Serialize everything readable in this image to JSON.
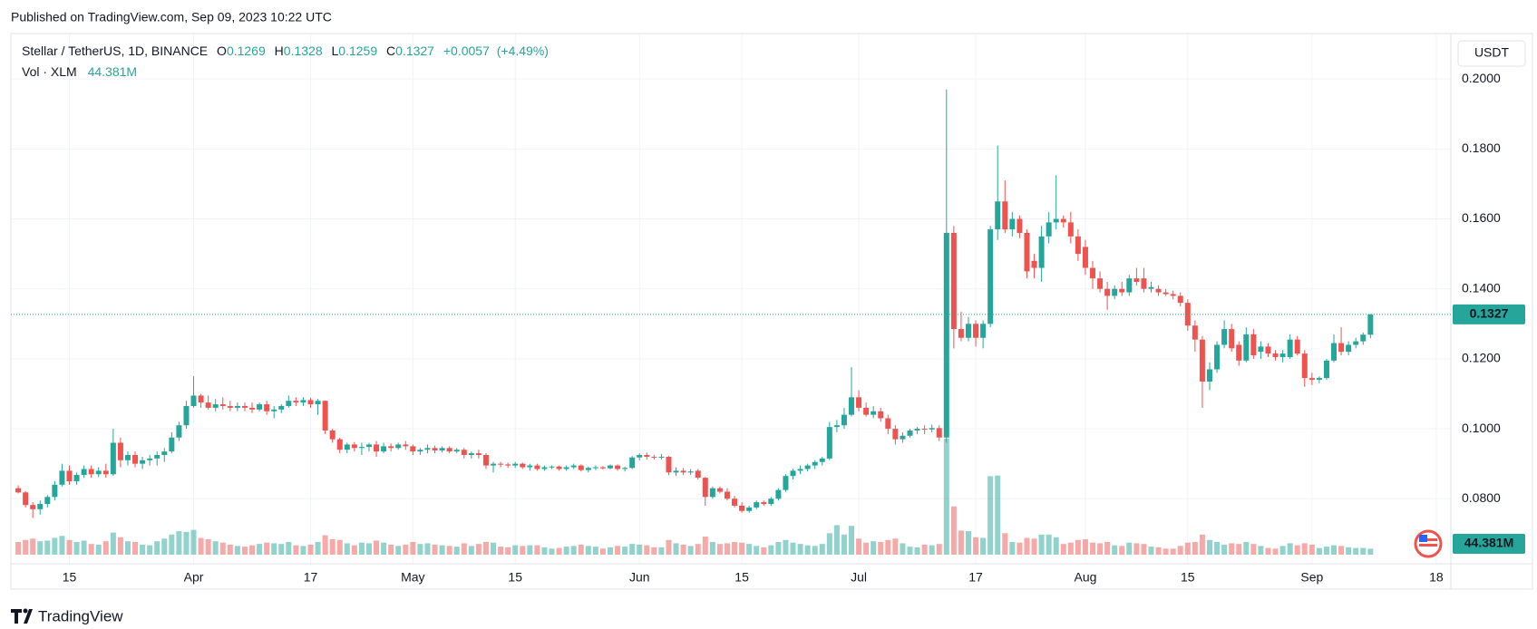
{
  "header": {
    "published": "Published on TradingView.com, Sep 09, 2023 10:22 UTC"
  },
  "footer": {
    "brand": "TradingView"
  },
  "chart_data": {
    "type": "candlestick",
    "legend": {
      "symbol": "Stellar / TetherUS, 1D, BINANCE",
      "fields": [
        {
          "label": "O",
          "value": 0.1269
        },
        {
          "label": "H",
          "value": 0.1328
        },
        {
          "label": "L",
          "value": 0.1259
        },
        {
          "label": "C",
          "value": 0.1327
        }
      ],
      "change": "+0.0057",
      "change_pct": "(+4.49%)",
      "volume_title": "Vol · XLM"
    },
    "currency": "USDT",
    "last_price": 0.1327,
    "volume_label": "44.381M",
    "up_color": "#26a69a",
    "down_color": "#ef5350",
    "ylim": [
      0.064,
      0.213
    ],
    "yticks": [
      {
        "value": 0.08,
        "label": "0.0800"
      },
      {
        "value": 0.1,
        "label": "0.1000"
      },
      {
        "value": 0.12,
        "label": "0.1200"
      },
      {
        "value": 0.14,
        "label": "0.1400"
      },
      {
        "value": 0.16,
        "label": "0.1600"
      },
      {
        "value": 0.18,
        "label": "0.1800"
      },
      {
        "value": 0.2,
        "label": "0.2000"
      }
    ],
    "xlim": [
      "Mar 7",
      "Sep 20"
    ],
    "xticks": [
      {
        "value": "Mar 15",
        "label": "15"
      },
      {
        "value": "Apr 1",
        "label": "Apr"
      },
      {
        "value": "Apr 17",
        "label": "17"
      },
      {
        "value": "May 1",
        "label": "May"
      },
      {
        "value": "May 15",
        "label": "15"
      },
      {
        "value": "Jun 1",
        "label": "Jun"
      },
      {
        "value": "Jun 15",
        "label": "15"
      },
      {
        "value": "Jul 1",
        "label": "Jul"
      },
      {
        "value": "Jul 17",
        "label": "17"
      },
      {
        "value": "Aug 1",
        "label": "Aug"
      },
      {
        "value": "Aug 15",
        "label": "15"
      },
      {
        "value": "Sep 1",
        "label": "Sep"
      },
      {
        "value": "Sep 18",
        "label": "18"
      }
    ],
    "grid": true,
    "x": [
      "Mar 8",
      "Mar 9",
      "Mar 10",
      "Mar 11",
      "Mar 12",
      "Mar 13",
      "Mar 14",
      "Mar 15",
      "Mar 16",
      "Mar 17",
      "Mar 18",
      "Mar 19",
      "Mar 20",
      "Mar 21",
      "Mar 22",
      "Mar 23",
      "Mar 24",
      "Mar 25",
      "Mar 26",
      "Mar 27",
      "Mar 28",
      "Mar 29",
      "Mar 30",
      "Mar 31",
      "Apr 1",
      "Apr 2",
      "Apr 3",
      "Apr 4",
      "Apr 5",
      "Apr 6",
      "Apr 7",
      "Apr 8",
      "Apr 9",
      "Apr 10",
      "Apr 11",
      "Apr 12",
      "Apr 13",
      "Apr 14",
      "Apr 15",
      "Apr 16",
      "Apr 17",
      "Apr 18",
      "Apr 19",
      "Apr 20",
      "Apr 21",
      "Apr 22",
      "Apr 23",
      "Apr 24",
      "Apr 25",
      "Apr 26",
      "Apr 27",
      "Apr 28",
      "Apr 29",
      "Apr 30",
      "May 1",
      "May 2",
      "May 3",
      "May 4",
      "May 5",
      "May 6",
      "May 7",
      "May 8",
      "May 9",
      "May 10",
      "May 11",
      "May 12",
      "May 13",
      "May 14",
      "May 15",
      "May 16",
      "May 17",
      "May 18",
      "May 19",
      "May 20",
      "May 21",
      "May 22",
      "May 23",
      "May 24",
      "May 25",
      "May 26",
      "May 27",
      "May 28",
      "May 29",
      "May 30",
      "May 31",
      "Jun 1",
      "Jun 2",
      "Jun 3",
      "Jun 4",
      "Jun 5",
      "Jun 6",
      "Jun 7",
      "Jun 8",
      "Jun 9",
      "Jun 10",
      "Jun 11",
      "Jun 12",
      "Jun 13",
      "Jun 14",
      "Jun 15",
      "Jun 16",
      "Jun 17",
      "Jun 18",
      "Jun 19",
      "Jun 20",
      "Jun 21",
      "Jun 22",
      "Jun 23",
      "Jun 24",
      "Jun 25",
      "Jun 26",
      "Jun 27",
      "Jun 28",
      "Jun 29",
      "Jun 30",
      "Jul 1",
      "Jul 2",
      "Jul 3",
      "Jul 4",
      "Jul 5",
      "Jul 6",
      "Jul 7",
      "Jul 8",
      "Jul 9",
      "Jul 10",
      "Jul 11",
      "Jul 12",
      "Jul 13",
      "Jul 14",
      "Jul 15",
      "Jul 16",
      "Jul 17",
      "Jul 18",
      "Jul 19",
      "Jul 20",
      "Jul 21",
      "Jul 22",
      "Jul 23",
      "Jul 24",
      "Jul 25",
      "Jul 26",
      "Jul 27",
      "Jul 28",
      "Jul 29",
      "Jul 30",
      "Jul 31",
      "Aug 1",
      "Aug 2",
      "Aug 3",
      "Aug 4",
      "Aug 5",
      "Aug 6",
      "Aug 7",
      "Aug 8",
      "Aug 9",
      "Aug 10",
      "Aug 11",
      "Aug 12",
      "Aug 13",
      "Aug 14",
      "Aug 15",
      "Aug 16",
      "Aug 17",
      "Aug 18",
      "Aug 19",
      "Aug 20",
      "Aug 21",
      "Aug 22",
      "Aug 23",
      "Aug 24",
      "Aug 25",
      "Aug 26",
      "Aug 27",
      "Aug 28",
      "Aug 29",
      "Aug 30",
      "Aug 31",
      "Sep 1",
      "Sep 2",
      "Sep 3",
      "Sep 4",
      "Sep 5",
      "Sep 6",
      "Sep 7",
      "Sep 8",
      "Sep 9"
    ],
    "open": [
      0.083,
      0.0818,
      0.0782,
      0.077,
      0.0785,
      0.0805,
      0.084,
      0.088,
      0.085,
      0.0868,
      0.0885,
      0.087,
      0.088,
      0.087,
      0.096,
      0.091,
      0.0925,
      0.09,
      0.091,
      0.0915,
      0.0925,
      0.0935,
      0.0975,
      0.101,
      0.1065,
      0.1095,
      0.1075,
      0.106,
      0.107,
      0.1065,
      0.106,
      0.1065,
      0.106,
      0.1055,
      0.107,
      0.105,
      0.1055,
      0.1065,
      0.108,
      0.1075,
      0.1082,
      0.107,
      0.108,
      0.0995,
      0.097,
      0.094,
      0.0955,
      0.0945,
      0.0948,
      0.0955,
      0.0935,
      0.095,
      0.0945,
      0.0955,
      0.095,
      0.0935,
      0.094,
      0.0945,
      0.0938,
      0.0945,
      0.0935,
      0.094,
      0.0925,
      0.093,
      0.0925,
      0.0895,
      0.09,
      0.0898,
      0.0895,
      0.09,
      0.089,
      0.0895,
      0.0885,
      0.089,
      0.0892,
      0.0885,
      0.089,
      0.0895,
      0.0882,
      0.0888,
      0.089,
      0.0887,
      0.0895,
      0.0885,
      0.0888,
      0.0918,
      0.0925,
      0.092,
      0.0918,
      0.092,
      0.0875,
      0.088,
      0.0875,
      0.088,
      0.086,
      0.0805,
      0.083,
      0.082,
      0.08,
      0.078,
      0.0765,
      0.0775,
      0.079,
      0.0785,
      0.08,
      0.0825,
      0.0865,
      0.088,
      0.0885,
      0.0895,
      0.0905,
      0.0915,
      0.1005,
      0.101,
      0.104,
      0.109,
      0.106,
      0.104,
      0.105,
      0.103,
      0.1,
      0.097,
      0.098,
      0.0995,
      0.1,
      0.0998,
      0.1002,
      0.0975,
      0.156,
      0.1285,
      0.126,
      0.13,
      0.126,
      0.13,
      0.157,
      0.165,
      0.157,
      0.16,
      0.156,
      0.148,
      0.146,
      0.155,
      0.159,
      0.16,
      0.159,
      0.155,
      0.152,
      0.146,
      0.143,
      0.14,
      0.138,
      0.14,
      0.139,
      0.143,
      0.143,
      0.14,
      0.14,
      0.139,
      0.1385,
      0.138,
      0.136,
      0.1295,
      0.1255,
      0.1135,
      0.117,
      0.124,
      0.1285,
      0.124,
      0.1195,
      0.127,
      0.122,
      0.1235,
      0.1215,
      0.1205,
      0.1205,
      0.1255,
      0.1215,
      0.1145,
      0.114,
      0.1145,
      0.1195,
      0.1245,
      0.122,
      0.124,
      0.125,
      0.1269
    ],
    "high": [
      0.0838,
      0.0822,
      0.079,
      0.0795,
      0.081,
      0.085,
      0.09,
      0.0895,
      0.0875,
      0.0895,
      0.0895,
      0.089,
      0.09,
      0.1,
      0.0975,
      0.0935,
      0.0935,
      0.092,
      0.0925,
      0.0935,
      0.0945,
      0.099,
      0.102,
      0.108,
      0.115,
      0.11,
      0.1095,
      0.1085,
      0.109,
      0.108,
      0.1075,
      0.1075,
      0.1075,
      0.1075,
      0.108,
      0.1065,
      0.107,
      0.1095,
      0.109,
      0.109,
      0.1088,
      0.1085,
      0.108,
      0.1,
      0.0975,
      0.096,
      0.0962,
      0.096,
      0.096,
      0.0965,
      0.096,
      0.0958,
      0.096,
      0.0965,
      0.0955,
      0.0945,
      0.0955,
      0.0952,
      0.095,
      0.095,
      0.0945,
      0.0945,
      0.0935,
      0.094,
      0.093,
      0.0905,
      0.0905,
      0.0903,
      0.0905,
      0.0903,
      0.09,
      0.09,
      0.0895,
      0.0895,
      0.0895,
      0.0895,
      0.09,
      0.0898,
      0.0892,
      0.0895,
      0.0893,
      0.0898,
      0.0898,
      0.0892,
      0.0922,
      0.093,
      0.0932,
      0.0925,
      0.0928,
      0.0922,
      0.089,
      0.0888,
      0.0885,
      0.0885,
      0.0862,
      0.0835,
      0.0835,
      0.083,
      0.0808,
      0.079,
      0.078,
      0.0795,
      0.0795,
      0.0805,
      0.083,
      0.087,
      0.0885,
      0.0895,
      0.09,
      0.091,
      0.092,
      0.102,
      0.1025,
      0.106,
      0.1176,
      0.111,
      0.1075,
      0.1065,
      0.106,
      0.104,
      0.101,
      0.099,
      0.1,
      0.1005,
      0.101,
      0.1012,
      0.101,
      0.197,
      0.158,
      0.1335,
      0.132,
      0.131,
      0.131,
      0.158,
      0.181,
      0.171,
      0.162,
      0.161,
      0.157,
      0.15,
      0.158,
      0.162,
      0.1725,
      0.161,
      0.162,
      0.157,
      0.154,
      0.148,
      0.145,
      0.142,
      0.141,
      0.142,
      0.144,
      0.146,
      0.146,
      0.142,
      0.141,
      0.14,
      0.1395,
      0.139,
      0.137,
      0.131,
      0.1265,
      0.119,
      0.125,
      0.131,
      0.13,
      0.125,
      0.129,
      0.1285,
      0.125,
      0.1245,
      0.1225,
      0.1225,
      0.127,
      0.1265,
      0.1225,
      0.116,
      0.115,
      0.12,
      0.127,
      0.129,
      0.125,
      0.126,
      0.1275,
      0.1328
    ],
    "low": [
      0.0815,
      0.0775,
      0.0745,
      0.0755,
      0.0775,
      0.0795,
      0.0835,
      0.084,
      0.084,
      0.086,
      0.086,
      0.0862,
      0.086,
      0.0865,
      0.089,
      0.0895,
      0.089,
      0.0885,
      0.0895,
      0.0895,
      0.0905,
      0.093,
      0.0965,
      0.1,
      0.106,
      0.106,
      0.1055,
      0.105,
      0.1055,
      0.105,
      0.105,
      0.105,
      0.1045,
      0.105,
      0.104,
      0.103,
      0.1045,
      0.106,
      0.1065,
      0.1065,
      0.106,
      0.104,
      0.0985,
      0.096,
      0.093,
      0.093,
      0.0935,
      0.0925,
      0.0935,
      0.092,
      0.093,
      0.0935,
      0.094,
      0.094,
      0.0925,
      0.0925,
      0.093,
      0.093,
      0.0932,
      0.093,
      0.093,
      0.0915,
      0.0915,
      0.0915,
      0.0885,
      0.0875,
      0.089,
      0.0888,
      0.0888,
      0.0885,
      0.088,
      0.088,
      0.088,
      0.0885,
      0.088,
      0.088,
      0.0885,
      0.0878,
      0.0875,
      0.0882,
      0.0883,
      0.0884,
      0.088,
      0.0878,
      0.0885,
      0.091,
      0.0912,
      0.0912,
      0.0912,
      0.0868,
      0.0865,
      0.0868,
      0.0868,
      0.0855,
      0.078,
      0.08,
      0.0815,
      0.0795,
      0.0775,
      0.076,
      0.076,
      0.077,
      0.078,
      0.078,
      0.0795,
      0.082,
      0.0855,
      0.087,
      0.0878,
      0.0885,
      0.0895,
      0.091,
      0.099,
      0.1,
      0.1035,
      0.105,
      0.1035,
      0.103,
      0.102,
      0.0985,
      0.0955,
      0.096,
      0.0975,
      0.0985,
      0.0985,
      0.099,
      0.0965,
      0.096,
      0.123,
      0.125,
      0.125,
      0.1235,
      0.123,
      0.129,
      0.154,
      0.156,
      0.155,
      0.1545,
      0.143,
      0.143,
      0.142,
      0.153,
      0.157,
      0.1575,
      0.153,
      0.148,
      0.144,
      0.14,
      0.139,
      0.134,
      0.137,
      0.138,
      0.138,
      0.141,
      0.139,
      0.139,
      0.138,
      0.138,
      0.137,
      0.135,
      0.128,
      0.122,
      0.106,
      0.111,
      0.116,
      0.123,
      0.122,
      0.118,
      0.119,
      0.12,
      0.12,
      0.1205,
      0.1195,
      0.119,
      0.12,
      0.121,
      0.112,
      0.1125,
      0.113,
      0.114,
      0.119,
      0.121,
      0.121,
      0.123,
      0.124,
      0.1259
    ],
    "close": [
      0.0818,
      0.0782,
      0.077,
      0.0785,
      0.0805,
      0.084,
      0.088,
      0.085,
      0.0868,
      0.0885,
      0.087,
      0.088,
      0.087,
      0.096,
      0.091,
      0.0925,
      0.09,
      0.091,
      0.0915,
      0.0925,
      0.0935,
      0.0975,
      0.101,
      0.1065,
      0.1095,
      0.1075,
      0.106,
      0.107,
      0.1065,
      0.106,
      0.1065,
      0.106,
      0.1055,
      0.107,
      0.105,
      0.1055,
      0.1065,
      0.108,
      0.1075,
      0.1082,
      0.107,
      0.108,
      0.0995,
      0.097,
      0.094,
      0.0955,
      0.0945,
      0.0948,
      0.0955,
      0.0935,
      0.095,
      0.0945,
      0.0955,
      0.095,
      0.0935,
      0.094,
      0.0945,
      0.0938,
      0.0945,
      0.0935,
      0.094,
      0.0925,
      0.093,
      0.0925,
      0.0895,
      0.09,
      0.0898,
      0.0895,
      0.09,
      0.089,
      0.0895,
      0.0885,
      0.089,
      0.0892,
      0.0885,
      0.089,
      0.0895,
      0.0882,
      0.0888,
      0.089,
      0.0887,
      0.0895,
      0.0885,
      0.0888,
      0.0918,
      0.0925,
      0.092,
      0.0918,
      0.092,
      0.0875,
      0.088,
      0.0875,
      0.0878,
      0.086,
      0.0805,
      0.083,
      0.082,
      0.08,
      0.078,
      0.0765,
      0.0775,
      0.079,
      0.0785,
      0.08,
      0.0825,
      0.0865,
      0.088,
      0.0885,
      0.0895,
      0.0905,
      0.0915,
      0.1005,
      0.101,
      0.104,
      0.109,
      0.106,
      0.104,
      0.105,
      0.103,
      0.1,
      0.097,
      0.098,
      0.0995,
      0.1,
      0.0998,
      0.1002,
      0.0975,
      0.156,
      0.1285,
      0.126,
      0.13,
      0.126,
      0.13,
      0.157,
      0.165,
      0.157,
      0.16,
      0.156,
      0.145,
      0.146,
      0.155,
      0.159,
      0.16,
      0.159,
      0.155,
      0.15,
      0.146,
      0.143,
      0.14,
      0.138,
      0.14,
      0.139,
      0.143,
      0.142,
      0.14,
      0.1405,
      0.139,
      0.1385,
      0.138,
      0.136,
      0.1295,
      0.1255,
      0.1135,
      0.117,
      0.124,
      0.1285,
      0.123,
      0.1195,
      0.127,
      0.121,
      0.1235,
      0.1215,
      0.1205,
      0.1215,
      0.1255,
      0.1215,
      0.1145,
      0.114,
      0.1145,
      0.1195,
      0.1245,
      0.122,
      0.124,
      0.125,
      0.1269,
      0.1327
    ],
    "volume": [
      95,
      110,
      120,
      100,
      105,
      125,
      140,
      110,
      95,
      105,
      80,
      75,
      100,
      165,
      130,
      100,
      95,
      75,
      70,
      100,
      120,
      150,
      175,
      170,
      185,
      125,
      115,
      100,
      90,
      75,
      65,
      60,
      70,
      80,
      90,
      85,
      80,
      95,
      70,
      65,
      75,
      95,
      145,
      115,
      110,
      85,
      70,
      90,
      85,
      105,
      90,
      75,
      65,
      75,
      95,
      80,
      85,
      75,
      70,
      65,
      60,
      85,
      65,
      80,
      95,
      90,
      60,
      55,
      70,
      65,
      70,
      70,
      55,
      45,
      50,
      60,
      65,
      75,
      65,
      60,
      45,
      55,
      65,
      60,
      80,
      75,
      70,
      55,
      55,
      110,
      85,
      75,
      65,
      80,
      135,
      95,
      80,
      85,
      95,
      90,
      80,
      65,
      55,
      70,
      95,
      110,
      90,
      80,
      70,
      65,
      80,
      160,
      220,
      150,
      215,
      120,
      90,
      100,
      95,
      110,
      120,
      85,
      60,
      55,
      75,
      70,
      80,
      865,
      360,
      180,
      175,
      130,
      125,
      585,
      590,
      160,
      95,
      90,
      125,
      120,
      150,
      150,
      130,
      80,
      90,
      110,
      115,
      90,
      85,
      95,
      70,
      65,
      90,
      85,
      80,
      60,
      55,
      45,
      45,
      65,
      90,
      95,
      150,
      110,
      95,
      75,
      85,
      80,
      95,
      80,
      65,
      50,
      45,
      65,
      85,
      70,
      85,
      75,
      50,
      60,
      70,
      65,
      55,
      50,
      50,
      44.381
    ]
  }
}
